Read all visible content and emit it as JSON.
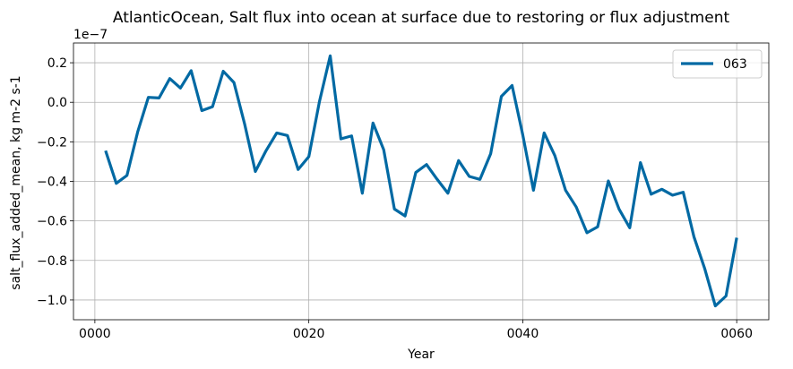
{
  "chart_data": {
    "type": "line",
    "title": "AtlanticOcean, Salt flux into ocean at surface due to restoring or flux adjustment",
    "xlabel": "Year",
    "ylabel": "salt_flux_added_mean, kg m-2 s-1",
    "y_offset_text": "1e−7",
    "xlim": [
      -2,
      63
    ],
    "ylim": [
      -1.1,
      0.3
    ],
    "x_ticks": [
      0,
      20,
      40,
      60
    ],
    "x_tick_labels": [
      "0000",
      "0020",
      "0040",
      "0060"
    ],
    "y_ticks": [
      -1.0,
      -0.8,
      -0.6,
      -0.4,
      -0.2,
      0.0,
      0.2
    ],
    "y_tick_labels": [
      "−1.0",
      "−0.8",
      "−0.6",
      "−0.4",
      "−0.2",
      "0.0",
      "0.2"
    ],
    "grid": true,
    "legend_position": "top-right",
    "series": [
      {
        "name": "063",
        "color": "#0069a3",
        "x": [
          1,
          2,
          3,
          4,
          5,
          6,
          7,
          8,
          9,
          10,
          11,
          12,
          13,
          14,
          15,
          16,
          17,
          18,
          19,
          20,
          21,
          22,
          23,
          24,
          25,
          26,
          27,
          28,
          29,
          30,
          31,
          32,
          33,
          34,
          35,
          36,
          37,
          38,
          39,
          40,
          41,
          42,
          43,
          44,
          45,
          46,
          47,
          48,
          49,
          50,
          51,
          52,
          53,
          54,
          55,
          56,
          57,
          58,
          59,
          60
        ],
        "values": [
          -0.245,
          -0.41,
          -0.37,
          -0.15,
          0.025,
          0.022,
          0.12,
          0.072,
          0.16,
          -0.042,
          -0.022,
          0.157,
          0.1,
          -0.11,
          -0.35,
          -0.245,
          -0.155,
          -0.168,
          -0.34,
          -0.275,
          0.005,
          0.235,
          -0.185,
          -0.17,
          -0.46,
          -0.105,
          -0.24,
          -0.54,
          -0.575,
          -0.355,
          -0.315,
          -0.39,
          -0.46,
          -0.295,
          -0.375,
          -0.39,
          -0.26,
          0.03,
          0.085,
          -0.165,
          -0.445,
          -0.155,
          -0.27,
          -0.445,
          -0.53,
          -0.66,
          -0.63,
          -0.398,
          -0.54,
          -0.635,
          -0.305,
          -0.465,
          -0.44,
          -0.47,
          -0.455,
          -0.68,
          -0.84,
          -1.03,
          -0.98,
          -0.685
        ]
      }
    ]
  }
}
